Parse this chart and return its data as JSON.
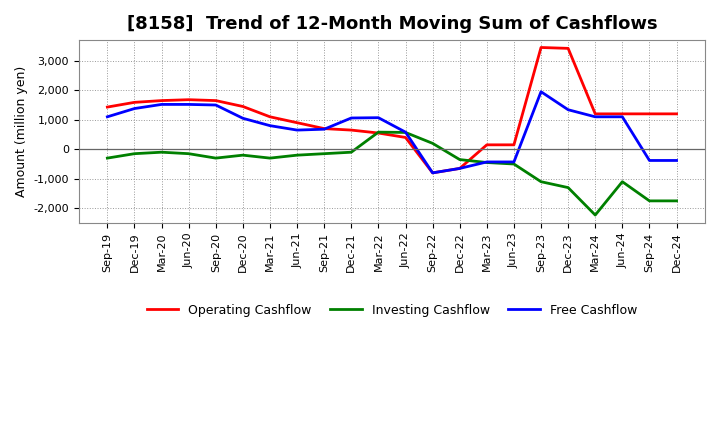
{
  "title": "[8158]  Trend of 12-Month Moving Sum of Cashflows",
  "ylabel": "Amount (million yen)",
  "x_labels": [
    "Sep-19",
    "Dec-19",
    "Mar-20",
    "Jun-20",
    "Sep-20",
    "Dec-20",
    "Mar-21",
    "Jun-21",
    "Sep-21",
    "Dec-21",
    "Mar-22",
    "Jun-22",
    "Sep-22",
    "Dec-22",
    "Mar-23",
    "Jun-23",
    "Sep-23",
    "Dec-23",
    "Mar-24",
    "Jun-24",
    "Sep-24",
    "Dec-24"
  ],
  "operating": [
    1430,
    1590,
    1650,
    1680,
    1650,
    1450,
    1100,
    900,
    700,
    650,
    550,
    400,
    -800,
    -650,
    150,
    150,
    3450,
    3420,
    1200,
    1200,
    1200,
    1200
  ],
  "investing": [
    -300,
    -150,
    -100,
    -150,
    -300,
    -200,
    -300,
    -200,
    -150,
    -100,
    580,
    570,
    200,
    -350,
    -450,
    -500,
    -1100,
    -1300,
    -2230,
    -1100,
    -1750,
    -1750
  ],
  "free": [
    1100,
    1380,
    1520,
    1520,
    1500,
    1050,
    800,
    650,
    680,
    1060,
    1070,
    580,
    -800,
    -650,
    -430,
    -430,
    1950,
    1340,
    1100,
    1100,
    -380,
    -380
  ],
  "operating_color": "#ff0000",
  "investing_color": "#008000",
  "free_color": "#0000ff",
  "ylim": [
    -2500,
    3700
  ],
  "yticks": [
    -2000,
    -1000,
    0,
    1000,
    2000,
    3000
  ],
  "bg_color": "#ffffff",
  "plot_bg_color": "#ffffff",
  "grid_color": "#999999",
  "line_width": 2.0,
  "title_fontsize": 13,
  "axis_fontsize": 9,
  "tick_fontsize": 8,
  "legend_fontsize": 9
}
